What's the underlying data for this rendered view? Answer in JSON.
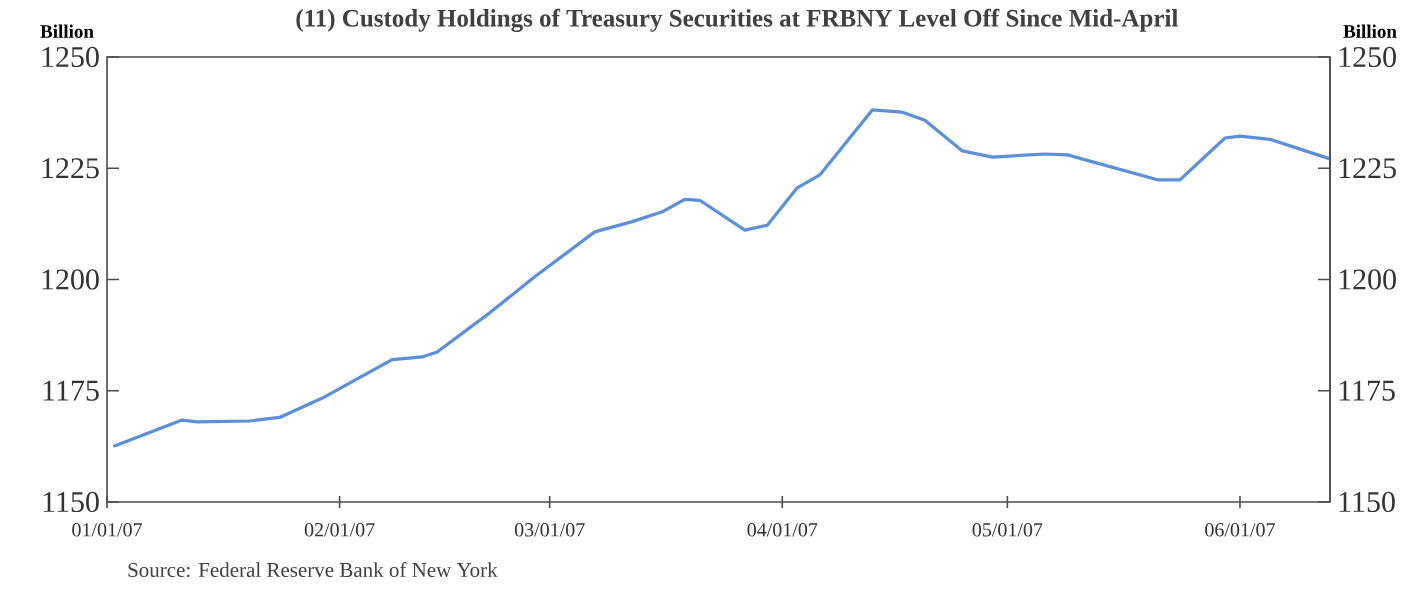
{
  "chart_data": {
    "type": "line",
    "title": "(11) Custody Holdings of Treasury Securities at FRBNY Level Off Since Mid-April",
    "ylabel": "Billion",
    "y2label": "Billion",
    "annotations": [
      "Source: Federal Reserve Bank of New York"
    ],
    "x": [
      "2007-01-02",
      "2007-01-11",
      "2007-01-13",
      "2007-01-20",
      "2007-01-24",
      "2007-01-30",
      "2007-02-08",
      "2007-02-12",
      "2007-02-14",
      "2007-02-21",
      "2007-02-27",
      "2007-03-07",
      "2007-03-12",
      "2007-03-16",
      "2007-03-19",
      "2007-03-21",
      "2007-03-27",
      "2007-03-30",
      "2007-04-03",
      "2007-04-06",
      "2007-04-13",
      "2007-04-17",
      "2007-04-20",
      "2007-04-25",
      "2007-04-29",
      "2007-05-06",
      "2007-05-09",
      "2007-05-21",
      "2007-05-24",
      "2007-05-30",
      "2007-06-01",
      "2007-06-05",
      "2007-06-13"
    ],
    "series": [
      {
        "color": "#5b8fd9",
        "values": [
          1162.6,
          1168.4,
          1168,
          1168.2,
          1169,
          1173.6,
          1182,
          1182.6,
          1183.7,
          1192.5,
          1200.6,
          1210.7,
          1213,
          1215.2,
          1218,
          1217.8,
          1211.1,
          1212.2,
          1220.6,
          1223.5,
          1238.1,
          1237.6,
          1235.8,
          1228.9,
          1227.5,
          1228.2,
          1228,
          1222.4,
          1222.4,
          1231.8,
          1232.2,
          1231.5,
          1227.1
        ]
      }
    ],
    "xlim": [
      "2007-01-01",
      "2007-06-13"
    ],
    "xticks": [
      {
        "value": "2007-01-01",
        "label": "01/01/07"
      },
      {
        "value": "2007-02-01",
        "label": "02/01/07"
      },
      {
        "value": "2007-03-01",
        "label": "03/01/07"
      },
      {
        "value": "2007-04-01",
        "label": "04/01/07"
      },
      {
        "value": "2007-05-01",
        "label": "05/01/07"
      },
      {
        "value": "2007-06-01",
        "label": "06/01/07"
      }
    ],
    "ylim": [
      1150,
      1250
    ],
    "yticks": [
      1150,
      1175,
      1200,
      1225,
      1250
    ],
    "y2lim": [
      1150,
      1250
    ],
    "y2ticks": [
      1150,
      1175,
      1200,
      1225,
      1250
    ],
    "grid": false,
    "line_style": "solid",
    "marker": "none"
  }
}
